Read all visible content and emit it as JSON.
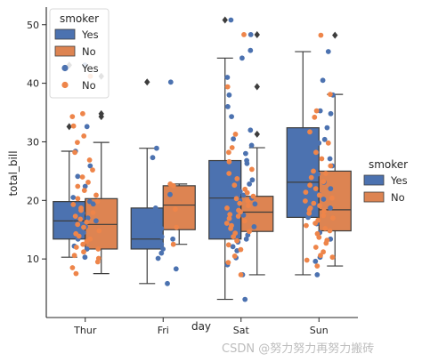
{
  "chart_data": {
    "type": "box",
    "xlabel": "day",
    "ylabel": "total_bill",
    "categories": [
      "Thur",
      "Fri",
      "Sat",
      "Sun"
    ],
    "ylim": [
      0,
      53
    ],
    "yticks": [
      10,
      20,
      30,
      40,
      50
    ],
    "series": [
      {
        "name": "Yes",
        "color": "#4c72b0",
        "point_color": "#4c72b0",
        "boxes": [
          {
            "category": "Thur",
            "whislo": 10.3,
            "q1": 13.4,
            "med": 16.5,
            "q3": 19.8,
            "whishi": 28.4,
            "fliers": [
              32.6,
              43.1
            ]
          },
          {
            "category": "Fri",
            "whislo": 5.8,
            "q1": 11.7,
            "med": 13.4,
            "q3": 18.7,
            "whishi": 28.9,
            "fliers": [
              40.2
            ]
          },
          {
            "category": "Sat",
            "whislo": 3.1,
            "q1": 13.4,
            "med": 20.4,
            "q3": 26.8,
            "whishi": 44.3,
            "fliers": [
              50.8
            ]
          },
          {
            "category": "Sun",
            "whislo": 7.3,
            "q1": 17.1,
            "med": 23.1,
            "q3": 32.4,
            "whishi": 45.4,
            "fliers": []
          }
        ]
      },
      {
        "name": "No",
        "color": "#dd8452",
        "point_color": "#ee854a",
        "boxes": [
          {
            "category": "Thur",
            "whislo": 7.5,
            "q1": 11.7,
            "med": 15.9,
            "q3": 20.3,
            "whishi": 29.9,
            "fliers": [
              34.3,
              34.8,
              41.2
            ]
          },
          {
            "category": "Fri",
            "whislo": 12.5,
            "q1": 15.0,
            "med": 19.2,
            "q3": 22.5,
            "whishi": 22.8,
            "fliers": []
          },
          {
            "category": "Sat",
            "whislo": 7.3,
            "q1": 14.7,
            "med": 18.0,
            "q3": 20.7,
            "whishi": 29.0,
            "fliers": [
              31.3,
              39.4,
              48.3
            ]
          },
          {
            "category": "Sun",
            "whislo": 8.8,
            "q1": 14.8,
            "med": 18.4,
            "q3": 25.0,
            "whishi": 38.1,
            "fliers": [
              48.2
            ]
          }
        ]
      }
    ],
    "points": [
      {
        "category": "Thur",
        "series": "Yes",
        "y": [
          10.3,
          11.7,
          12.2,
          13.4,
          14.5,
          15.5,
          16.0,
          16.5,
          17.0,
          17.8,
          18.6,
          19.4,
          19.8,
          20.5,
          22.4,
          24.1,
          25.9,
          28.4,
          32.6,
          43.1
        ]
      },
      {
        "category": "Thur",
        "series": "No",
        "y": [
          7.5,
          8.5,
          9.5,
          10.1,
          10.6,
          11.2,
          11.7,
          12.0,
          12.5,
          13.0,
          13.4,
          13.9,
          14.3,
          14.8,
          15.4,
          15.9,
          16.3,
          16.8,
          17.3,
          17.9,
          18.3,
          18.7,
          19.3,
          19.8,
          20.3,
          20.9,
          21.7,
          22.4,
          23.1,
          24.0,
          25.2,
          26.9,
          28.2,
          29.9,
          31.0,
          32.7,
          34.3,
          34.8,
          41.2
        ]
      },
      {
        "category": "Fri",
        "series": "Yes",
        "y": [
          5.8,
          8.3,
          10.1,
          11.0,
          11.7,
          12.5,
          13.4,
          13.8,
          15.2,
          16.4,
          18.7,
          21.0,
          27.3,
          28.9,
          40.2
        ]
      },
      {
        "category": "Fri",
        "series": "No",
        "y": [
          12.5,
          15.4,
          18.5,
          22.5,
          22.8
        ]
      },
      {
        "category": "Sat",
        "series": "Yes",
        "y": [
          3.1,
          7.3,
          9.0,
          10.2,
          11.4,
          12.1,
          12.9,
          13.4,
          14.1,
          14.8,
          15.5,
          16.2,
          16.9,
          17.5,
          18.2,
          18.8,
          19.4,
          20.0,
          20.4,
          20.9,
          21.5,
          22.1,
          22.8,
          23.5,
          24.2,
          24.9,
          25.6,
          26.3,
          26.8,
          28.0,
          29.4,
          30.5,
          32.0,
          34.3,
          36.0,
          38.0,
          41.0,
          44.3,
          45.6,
          48.3,
          50.8
        ]
      },
      {
        "category": "Sat",
        "series": "No",
        "y": [
          7.3,
          9.4,
          10.5,
          11.6,
          12.4,
          13.1,
          13.8,
          14.4,
          14.7,
          15.2,
          15.7,
          16.1,
          16.5,
          16.9,
          17.3,
          17.6,
          18.0,
          18.3,
          18.7,
          19.1,
          19.5,
          19.9,
          20.3,
          20.7,
          21.3,
          21.9,
          22.6,
          23.7,
          24.6,
          25.3,
          26.6,
          28.2,
          29.0,
          31.3,
          39.4,
          48.3
        ]
      },
      {
        "category": "Sun",
        "series": "Yes",
        "y": [
          7.3,
          9.6,
          10.3,
          13.4,
          14.5,
          16.0,
          17.1,
          18.7,
          20.2,
          21.0,
          22.0,
          23.1,
          24.5,
          25.9,
          27.1,
          28.2,
          29.8,
          30.4,
          32.4,
          34.8,
          35.3,
          38.0,
          40.5,
          45.4
        ]
      },
      {
        "category": "Sun",
        "series": "No",
        "y": [
          8.8,
          9.8,
          10.3,
          10.6,
          11.2,
          12.0,
          12.7,
          13.2,
          13.7,
          14.3,
          14.8,
          15.2,
          15.7,
          16.1,
          16.6,
          17.0,
          17.4,
          17.8,
          18.2,
          18.4,
          18.7,
          19.1,
          19.5,
          19.9,
          20.4,
          20.9,
          21.4,
          22.0,
          22.6,
          23.2,
          23.9,
          24.6,
          25.0,
          25.9,
          27.1,
          28.2,
          29.8,
          31.7,
          34.2,
          35.3,
          38.1,
          48.2
        ]
      }
    ],
    "legends": [
      {
        "title": "smoker",
        "placement": "upper-left",
        "entries": [
          {
            "label": "Yes",
            "marker": "patch",
            "color": "#4c72b0"
          },
          {
            "label": "No",
            "marker": "patch",
            "color": "#dd8452"
          },
          {
            "label": "Yes",
            "marker": "dot",
            "color": "#4c72b0"
          },
          {
            "label": "No",
            "marker": "dot",
            "color": "#ee854a"
          }
        ]
      },
      {
        "title": "smoker",
        "placement": "outside-right",
        "entries": [
          {
            "label": "Yes",
            "marker": "patch",
            "color": "#4c72b0"
          },
          {
            "label": "No",
            "marker": "patch",
            "color": "#dd8452"
          }
        ]
      }
    ],
    "grid": false,
    "watermark": "CSDN @努力努力再努力搬砖"
  }
}
